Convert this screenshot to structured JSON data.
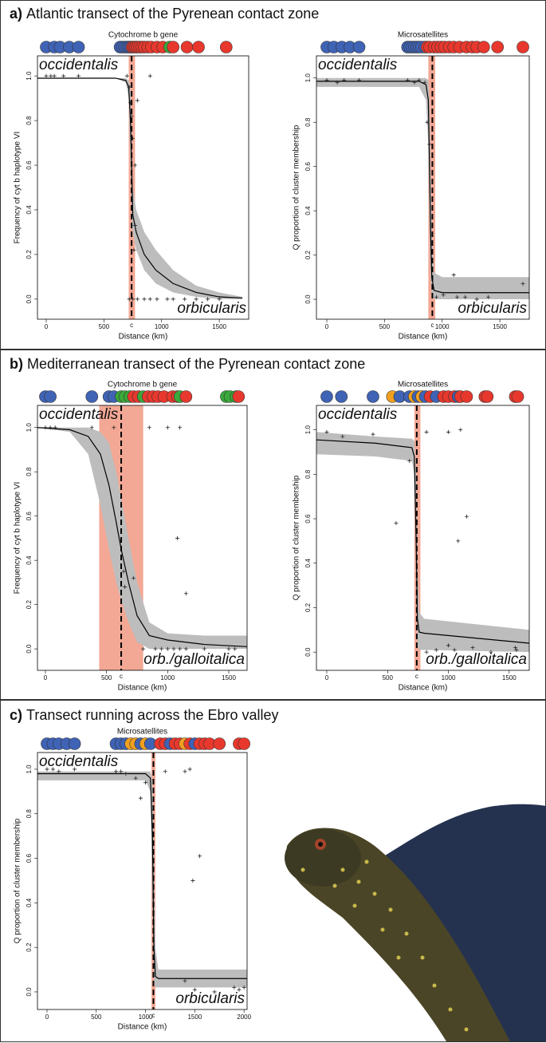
{
  "headings": [
    {
      "letter": "a)",
      "text": "Atlantic transect of the Pyrenean contact zone"
    },
    {
      "letter": "b)",
      "text": "Mediterranean transect of the Pyrenean contact zone"
    },
    {
      "letter": "c)",
      "text": "Transect running across the Ebro valley"
    }
  ],
  "chart_data": [
    {
      "type": "line",
      "title": "Cytochrome b gene",
      "xlabel": "Distance (km)",
      "ylabel": "Frequency of cyt b haplotype VI",
      "annotations": [
        "occidentalis",
        "orbicularis"
      ],
      "xlim": [
        -76,
        1755
      ],
      "xticks": [
        0,
        500,
        1000,
        1500
      ],
      "ylim": [
        -0.09,
        1.09
      ],
      "yticks": [
        {
          "value": 0,
          "label": "0.0"
        },
        0.2,
        0.4,
        0.6,
        0.8,
        {
          "value": 1,
          "label": "1.0"
        }
      ],
      "center": 740,
      "center_label": "c",
      "center_band": [
        715,
        770
      ],
      "curve": {
        "x": [
          -76,
          600,
          690,
          715,
          730,
          740,
          750,
          780,
          850,
          950,
          1100,
          1300,
          1500,
          1700
        ],
        "values": [
          0.99,
          0.99,
          0.98,
          0.95,
          0.8,
          0.6,
          0.38,
          0.3,
          0.2,
          0.13,
          0.07,
          0.03,
          0.01,
          0.005
        ],
        "lower": [
          0.99,
          0.99,
          0.97,
          0.9,
          0.6,
          0.4,
          0.3,
          0.22,
          0.13,
          0.07,
          0.03,
          0.01,
          0,
          0
        ],
        "upper": [
          0.99,
          0.99,
          0.99,
          0.98,
          0.95,
          0.75,
          0.5,
          0.4,
          0.3,
          0.22,
          0.13,
          0.06,
          0.03,
          0.01
        ]
      },
      "points": {
        "x": [
          0,
          40,
          70,
          150,
          280,
          700,
          720,
          730,
          740,
          750,
          770,
          790,
          900,
          720,
          750,
          790,
          850,
          900,
          960,
          1050,
          1100,
          1200,
          1300,
          1400,
          1500,
          760,
          770
        ],
        "values": [
          1,
          1,
          1,
          1,
          1,
          1,
          0.95,
          0.88,
          0.82,
          0.72,
          0.6,
          0.89,
          1,
          0,
          0,
          0,
          0,
          0,
          0,
          0,
          0,
          0,
          0,
          0,
          0,
          0.22,
          0.33
        ]
      },
      "sites": {
        "x": [
          0,
          70,
          120,
          200,
          280,
          640,
          660,
          680,
          700,
          715,
          730,
          745,
          760,
          775,
          790,
          810,
          830,
          850,
          880,
          910,
          960,
          1010,
          1070,
          1100,
          1220,
          1320,
          1560
        ],
        "colors": [
          "#3f63b5",
          "#3f63b5",
          "#3f63b5",
          "#3f63b5",
          "#3f63b5",
          "#3f63b5",
          "#3f63b5",
          "#3f63b5",
          "#3f63b5",
          "#3f63b5",
          "#3f63b5",
          "#e8382d",
          "#e8382d",
          "#e8382d",
          "#e8382d",
          "#e8382d",
          "#e8382d",
          "#e8382d",
          "#e8382d",
          "#e8382d",
          "#e8382d",
          "#e8382d",
          "#3aa83a",
          "#e8382d",
          "#e8382d",
          "#e8382d",
          "#e8382d"
        ]
      }
    },
    {
      "type": "line",
      "title": "Microsatellites",
      "xlabel": "Distance (km)",
      "ylabel": "Q proportion of cluster membership",
      "annotations": [
        "occidentalis",
        "orbicularis"
      ],
      "xlim": [
        -90,
        1755
      ],
      "xticks": [
        0,
        500,
        1000,
        1500
      ],
      "ylim": [
        -0.09,
        1.1
      ],
      "yticks": [
        {
          "value": 0,
          "label": "0.0"
        },
        0.2,
        0.4,
        0.6,
        0.8,
        {
          "value": 1,
          "label": "1.0"
        }
      ],
      "center": 915,
      "center_label": "c",
      "center_band": [
        880,
        940
      ],
      "curve": {
        "x": [
          -90,
          800,
          860,
          880,
          890,
          900,
          910,
          930,
          1000,
          1755
        ],
        "values": [
          0.985,
          0.985,
          0.97,
          0.9,
          0.6,
          0.3,
          0.1,
          0.04,
          0.03,
          0.03
        ],
        "lower": [
          0.96,
          0.96,
          0.9,
          0.7,
          0.35,
          0.1,
          0.02,
          0,
          0,
          0
        ],
        "upper": [
          1,
          1,
          1,
          0.99,
          0.9,
          0.6,
          0.3,
          0.12,
          0.1,
          0.1
        ]
      },
      "points": {
        "x": [
          0,
          90,
          150,
          280,
          700,
          760,
          800,
          850,
          870,
          890,
          950,
          1010,
          1100,
          1130,
          1200,
          1300,
          1400,
          1700
        ],
        "values": [
          0.99,
          0.98,
          0.99,
          0.99,
          0.99,
          0.98,
          0.99,
          0.98,
          0.8,
          0.7,
          0.01,
          0.02,
          0.11,
          0.01,
          0.01,
          0,
          0.01,
          0.07
        ]
      },
      "sites": {
        "x": [
          0,
          60,
          130,
          200,
          280,
          700,
          720,
          740,
          760,
          780,
          800,
          820,
          850,
          870,
          890,
          930,
          960,
          990,
          1020,
          1060,
          1100,
          1150,
          1210,
          1260,
          1300,
          1360,
          1480,
          1700
        ],
        "colors": [
          "#3f63b5",
          "#3f63b5",
          "#3f63b5",
          "#3f63b5",
          "#3f63b5",
          "#3f63b5",
          "#3f63b5",
          "#3f63b5",
          "#3f63b5",
          "#3f63b5",
          "#3f63b5",
          "#3f63b5",
          "#3f63b5",
          "#e8382d",
          "#e8382d",
          "#e8382d",
          "#e8382d",
          "#e8382d",
          "#e8382d",
          "#e8382d",
          "#e8382d",
          "#e8382d",
          "#e8382d",
          "#e8382d",
          "#e8382d",
          "#e8382d",
          "#e8382d",
          "#e8382d"
        ]
      }
    },
    {
      "type": "line",
      "title": "Cytochrome b gene",
      "xlabel": "Distance (km)",
      "ylabel": "Frequency of cyt b haplotype VI",
      "annotations": [
        "occidentalis",
        "orb./galloitalica"
      ],
      "xlim": [
        -65,
        1650
      ],
      "xticks": [
        0,
        500,
        1000,
        1500
      ],
      "ylim": [
        -0.097,
        1.1
      ],
      "yticks": [
        {
          "value": 0,
          "label": "0.0"
        },
        0.2,
        0.4,
        0.6,
        0.8,
        {
          "value": 1,
          "label": "1.0"
        }
      ],
      "center": 620,
      "center_label": "c",
      "center_band": [
        440,
        800
      ],
      "curve": {
        "x": [
          -65,
          200,
          350,
          450,
          520,
          580,
          620,
          680,
          750,
          850,
          1000,
          1300,
          1650
        ],
        "values": [
          1,
          0.99,
          0.96,
          0.88,
          0.74,
          0.57,
          0.45,
          0.3,
          0.15,
          0.06,
          0.04,
          0.02,
          0.01
        ],
        "lower": [
          1,
          0.98,
          0.88,
          0.65,
          0.45,
          0.3,
          0.22,
          0.12,
          0.03,
          0,
          0,
          0,
          0
        ],
        "upper": [
          1,
          1,
          1,
          0.98,
          0.93,
          0.8,
          0.68,
          0.5,
          0.3,
          0.12,
          0.07,
          0.06,
          0.06
        ]
      },
      "points": {
        "x": [
          0,
          40,
          80,
          380,
          560,
          640,
          720,
          650,
          850,
          1000,
          1100,
          1080,
          1150,
          800,
          900,
          950,
          1000,
          1050,
          1100,
          1150,
          1300,
          1500,
          1550
        ],
        "values": [
          1,
          1,
          1,
          1,
          1,
          0.35,
          0.32,
          0.28,
          1,
          1,
          1,
          0.5,
          0.25,
          0,
          0,
          0,
          0,
          0,
          0,
          0,
          0,
          0,
          0
        ]
      },
      "sites": {
        "x": [
          0,
          40,
          380,
          520,
          560,
          620,
          650,
          690,
          720,
          760,
          800,
          840,
          880,
          920,
          970,
          1040,
          1080,
          1100,
          1150,
          1480,
          1510,
          1560,
          1580
        ],
        "colors": [
          "#3f63b5",
          "#3f63b5",
          "#3f63b5",
          "#3f63b5",
          "#3f63b5",
          "#3aa83a",
          "#3aa83a",
          "#3aa83a",
          "#e8382d",
          "#e8382d",
          "#3aa83a",
          "#e8382d",
          "#e8382d",
          "#e8382d",
          "#e8382d",
          "#e8382d",
          "#e8382d",
          "#3aa83a",
          "#e8382d",
          "#3aa83a",
          "#3aa83a",
          "#3aa83a",
          "#e8382d"
        ]
      }
    },
    {
      "type": "line",
      "title": "Microsatellites",
      "xlabel": "Distance (km)",
      "ylabel": "Q proportion of cluster membership",
      "annotations": [
        "occidentalis",
        "orb./galloitalica"
      ],
      "xlim": [
        -85,
        1665
      ],
      "xticks": [
        0,
        500,
        1000,
        1500
      ],
      "ylim": [
        -0.082,
        1.11
      ],
      "yticks": [
        {
          "value": 0,
          "label": "0.0"
        },
        0.2,
        0.4,
        0.6,
        0.8,
        {
          "value": 1,
          "label": "1.0"
        }
      ],
      "center": 740,
      "center_label": "c",
      "center_band": [
        720,
        770
      ],
      "curve": {
        "x": [
          -85,
          400,
          700,
          720,
          735,
          745,
          760,
          800,
          1665
        ],
        "values": [
          0.955,
          0.94,
          0.92,
          0.88,
          0.5,
          0.15,
          0.09,
          0.085,
          0.04
        ],
        "lower": [
          0.89,
          0.88,
          0.86,
          0.8,
          0.3,
          0.03,
          0.01,
          0.01,
          0
        ],
        "upper": [
          0.99,
          0.97,
          0.96,
          0.95,
          0.8,
          0.4,
          0.18,
          0.15,
          0.1
        ]
      },
      "points": {
        "x": [
          0,
          130,
          380,
          570,
          680,
          820,
          1000,
          1100,
          1150,
          1080,
          820,
          900,
          1000,
          1050,
          1200,
          1350,
          1550,
          1560
        ],
        "values": [
          0.99,
          0.97,
          0.98,
          0.58,
          0.86,
          0.99,
          0.99,
          1,
          0.61,
          0.5,
          0,
          0.01,
          0.03,
          0.01,
          0.02,
          0,
          0.02,
          0.01
        ]
      },
      "sites": {
        "x": [
          0,
          120,
          380,
          540,
          600,
          680,
          720,
          750,
          780,
          810,
          850,
          900,
          960,
          1000,
          1050,
          1080,
          1100,
          1150,
          1300,
          1320,
          1550,
          1570
        ],
        "colors": [
          "#3f63b5",
          "#3f63b5",
          "#3f63b5",
          "#f0a020",
          "#3f63b5",
          "#3f63b5",
          "#f0a020",
          "#3f63b5",
          "#f0a020",
          "#3f63b5",
          "#e8382d",
          "#3f63b5",
          "#e8382d",
          "#e8382d",
          "#e8382d",
          "#3f63b5",
          "#e8382d",
          "#e8382d",
          "#e8382d",
          "#e8382d",
          "#e8382d",
          "#e8382d"
        ]
      }
    },
    {
      "type": "line",
      "title": "Microsatellites",
      "xlabel": "Distance (km)",
      "ylabel": "Q proportion of cluster membership",
      "annotations": [
        "occidentalis",
        "orbicularis"
      ],
      "xlim": [
        -97,
        2031
      ],
      "xticks": [
        0,
        500,
        1000,
        1500,
        2000
      ],
      "ylim": [
        -0.079,
        1.075
      ],
      "yticks": [
        {
          "value": 0,
          "label": "0.0"
        },
        0.2,
        0.4,
        0.6,
        0.8,
        {
          "value": 1,
          "label": "1.0"
        }
      ],
      "center": 1080,
      "center_label": "c",
      "center_band": [
        1060,
        1100
      ],
      "curve": {
        "x": [
          -97,
          1000,
          1050,
          1070,
          1085,
          1100,
          1130,
          2031
        ],
        "values": [
          0.98,
          0.98,
          0.96,
          0.7,
          0.2,
          0.07,
          0.06,
          0.06
        ],
        "lower": [
          0.95,
          0.95,
          0.9,
          0.4,
          0.05,
          0.02,
          0.02,
          0.02
        ],
        "upper": [
          0.99,
          0.99,
          0.99,
          0.95,
          0.6,
          0.2,
          0.1,
          0.1
        ]
      },
      "points": {
        "x": [
          0,
          60,
          120,
          280,
          700,
          750,
          800,
          900,
          950,
          1000,
          1200,
          1400,
          1450,
          1550,
          1480,
          1400,
          1500,
          1700,
          1900,
          1950,
          2000
        ],
        "values": [
          1,
          1,
          0.99,
          1,
          0.99,
          0.99,
          0.98,
          0.96,
          0.87,
          0.94,
          0.99,
          0.99,
          1,
          0.61,
          0.5,
          0.05,
          0.01,
          0,
          0.02,
          0.01,
          0.02
        ]
      },
      "sites": {
        "x": [
          0,
          60,
          120,
          200,
          280,
          700,
          750,
          800,
          850,
          900,
          950,
          1000,
          1050,
          1150,
          1200,
          1250,
          1300,
          1350,
          1400,
          1450,
          1500,
          1550,
          1600,
          1650,
          1750,
          1950,
          2000
        ],
        "colors": [
          "#3f63b5",
          "#3f63b5",
          "#3f63b5",
          "#3f63b5",
          "#3f63b5",
          "#3f63b5",
          "#3f63b5",
          "#3f63b5",
          "#f0a020",
          "#f0a020",
          "#3f63b5",
          "#f0a020",
          "#3f63b5",
          "#e8382d",
          "#e8382d",
          "#3f63b5",
          "#e8382d",
          "#e8382d",
          "#f0a020",
          "#e8382d",
          "#3f63b5",
          "#e8382d",
          "#e8382d",
          "#e8382d",
          "#e8382d",
          "#e8382d",
          "#e8382d"
        ]
      }
    }
  ]
}
